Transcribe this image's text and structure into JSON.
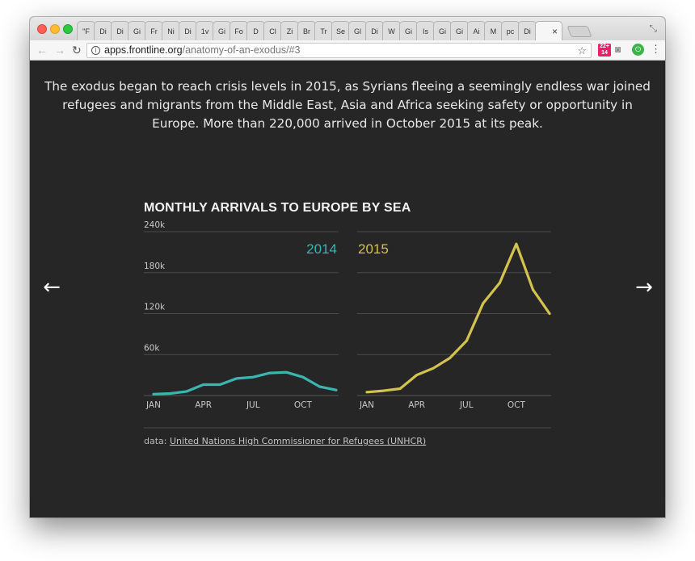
{
  "browser": {
    "tab_labels": [
      "\"F",
      "Di",
      "Di",
      "Gi",
      "Fr",
      "Ni",
      "Di",
      "1v",
      "Gi",
      "Fo",
      "D",
      "Cl",
      "Zi",
      "Br",
      "Tr",
      "Se",
      "Gl",
      "Di",
      "W",
      "Gi",
      "Is",
      "Gi",
      "Gi",
      "Ai",
      "M",
      "pc",
      "Di"
    ],
    "active_tab_close": "×",
    "url_host": "apps.frontline.org",
    "url_path": "/anatomy-of-an-exodus/#3",
    "ext_badge": "22+ 14"
  },
  "page": {
    "intro": "The exodus began to reach crisis levels in 2015, as Syrians fleeing a seemingly endless war joined refugees and migrants from the Middle East, Asia and Africa seeking safety or opportunity in Europe. More than 220,000 arrived in October 2015 at its peak.",
    "source_prefix": "data:",
    "source_link": "United Nations High Commissioner for Refugees (UNHCR)",
    "prev_arrow": "←",
    "next_arrow": "→"
  },
  "chart_data": {
    "type": "line",
    "title": "MONTHLY ARRIVALS TO EUROPE BY SEA",
    "y_ticks": [
      "240k",
      "180k",
      "120k",
      "60k"
    ],
    "y_tick_values": [
      240000,
      180000,
      120000,
      60000
    ],
    "ylim": [
      0,
      240000
    ],
    "x_tick_labels": [
      "JAN",
      "APR",
      "JUL",
      "OCT"
    ],
    "x_tick_months": [
      1,
      4,
      7,
      10
    ],
    "grid": true,
    "panels": [
      {
        "name": "2014",
        "color": "#3bb5b0",
        "months": [
          1,
          2,
          3,
          4,
          5,
          6,
          7,
          8,
          9,
          10,
          11,
          12
        ],
        "values": [
          2000,
          3000,
          6000,
          16000,
          16000,
          25000,
          27000,
          33000,
          34000,
          27000,
          13000,
          8000
        ]
      },
      {
        "name": "2015",
        "color": "#d4c24e",
        "months": [
          1,
          2,
          3,
          4,
          5,
          6,
          7,
          8,
          9,
          10,
          11,
          12
        ],
        "values": [
          5000,
          7000,
          10000,
          30000,
          40000,
          55000,
          80000,
          135000,
          165000,
          222000,
          155000,
          120000
        ]
      }
    ]
  }
}
